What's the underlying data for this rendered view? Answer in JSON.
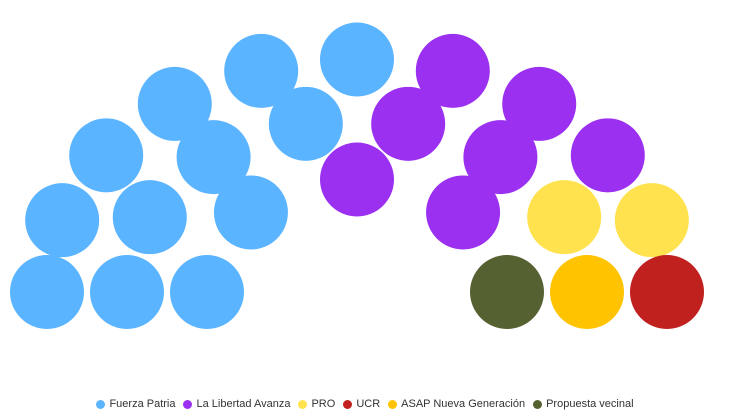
{
  "chart_data": {
    "type": "parliament",
    "series": [
      {
        "name": "Fuerza Patria",
        "color": "#5ab4ff",
        "values": 12
      },
      {
        "name": "La Libertad Avanza",
        "color": "#9b30f0",
        "values": 7
      },
      {
        "name": "PRO",
        "color": "#ffe24d",
        "values": 2
      },
      {
        "name": "UCR",
        "color": "#c0201e",
        "values": 1
      },
      {
        "name": "ASAP Nueva Generación",
        "color": "#ffc300",
        "values": 1
      },
      {
        "name": "Propuesta vecinal",
        "color": "#556130",
        "values": 1
      }
    ]
  }
}
